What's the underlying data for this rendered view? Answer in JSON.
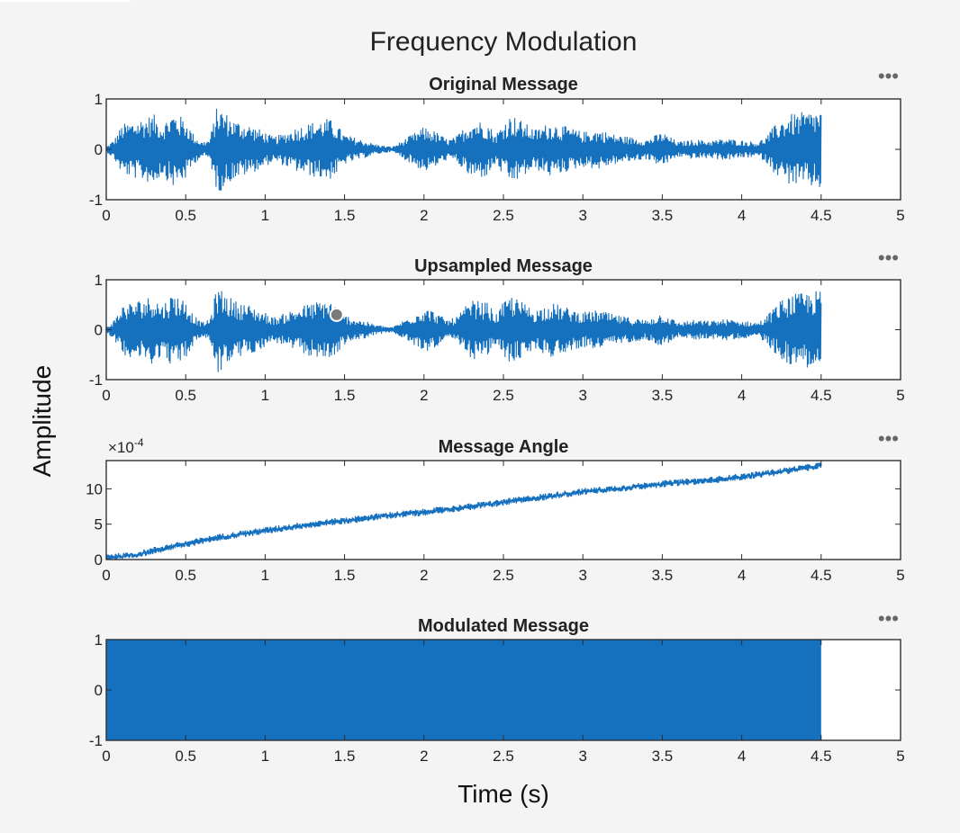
{
  "figure": {
    "title": "Frequency Modulation",
    "ylabel": "Amplitude",
    "xlabel": "Time (s)",
    "menu_glyph": "•••",
    "accent": "#1570be"
  },
  "chart_data": [
    {
      "type": "line",
      "title": "Original Message",
      "xlim": [
        0,
        5
      ],
      "ylim": [
        -1,
        1
      ],
      "xticks": [
        0,
        0.5,
        1,
        1.5,
        2,
        2.5,
        3,
        3.5,
        4,
        4.5,
        5
      ],
      "xtick_labels": [
        "0",
        "0.5",
        "1",
        "1.5",
        "2",
        "2.5",
        "3",
        "3.5",
        "4",
        "4.5",
        "5"
      ],
      "yticks": [
        -1,
        0,
        1
      ],
      "ytick_labels": [
        "-1",
        "0",
        "1"
      ],
      "data_end_x": 4.5,
      "envelope": {
        "x": [
          0,
          0.05,
          0.1,
          0.2,
          0.3,
          0.35,
          0.42,
          0.5,
          0.55,
          0.6,
          0.65,
          0.7,
          0.73,
          0.8,
          0.9,
          1.0,
          1.05,
          1.1,
          1.2,
          1.3,
          1.4,
          1.45,
          1.5,
          1.6,
          1.7,
          1.8,
          1.9,
          2.0,
          2.05,
          2.1,
          2.15,
          2.2,
          2.3,
          2.4,
          2.45,
          2.5,
          2.55,
          2.6,
          2.7,
          2.8,
          2.9,
          3.0,
          3.1,
          3.2,
          3.3,
          3.4,
          3.5,
          3.6,
          3.7,
          3.8,
          3.9,
          4.0,
          4.1,
          4.15,
          4.2,
          4.25,
          4.3,
          4.4,
          4.5
        ],
        "amp": [
          0.05,
          0.2,
          0.5,
          0.6,
          0.7,
          0.5,
          0.75,
          0.6,
          0.3,
          0.15,
          0.2,
          0.9,
          0.8,
          0.6,
          0.5,
          0.35,
          0.25,
          0.3,
          0.45,
          0.55,
          0.62,
          0.5,
          0.3,
          0.2,
          0.1,
          0.05,
          0.25,
          0.45,
          0.4,
          0.3,
          0.2,
          0.25,
          0.6,
          0.55,
          0.3,
          0.55,
          0.7,
          0.6,
          0.4,
          0.55,
          0.45,
          0.35,
          0.4,
          0.3,
          0.25,
          0.2,
          0.35,
          0.15,
          0.2,
          0.18,
          0.22,
          0.18,
          0.15,
          0.25,
          0.45,
          0.6,
          0.7,
          0.75,
          0.8
        ]
      }
    },
    {
      "type": "line",
      "title": "Upsampled Message",
      "xlim": [
        0,
        5
      ],
      "ylim": [
        -1,
        1
      ],
      "xticks": [
        0,
        0.5,
        1,
        1.5,
        2,
        2.5,
        3,
        3.5,
        4,
        4.5,
        5
      ],
      "xtick_labels": [
        "0",
        "0.5",
        "1",
        "1.5",
        "2",
        "2.5",
        "3",
        "3.5",
        "4",
        "4.5",
        "5"
      ],
      "yticks": [
        -1,
        0,
        1
      ],
      "ytick_labels": [
        "-1",
        "0",
        "1"
      ],
      "data_end_x": 4.5,
      "envelope": {
        "x": [
          0,
          0.05,
          0.1,
          0.2,
          0.3,
          0.35,
          0.42,
          0.5,
          0.55,
          0.6,
          0.65,
          0.7,
          0.73,
          0.8,
          0.9,
          1.0,
          1.05,
          1.1,
          1.2,
          1.3,
          1.4,
          1.45,
          1.5,
          1.6,
          1.7,
          1.8,
          1.9,
          2.0,
          2.05,
          2.1,
          2.15,
          2.2,
          2.3,
          2.4,
          2.45,
          2.5,
          2.55,
          2.6,
          2.7,
          2.8,
          2.9,
          3.0,
          3.1,
          3.2,
          3.3,
          3.4,
          3.5,
          3.6,
          3.7,
          3.8,
          3.9,
          4.0,
          4.1,
          4.15,
          4.2,
          4.25,
          4.3,
          4.4,
          4.5
        ],
        "amp": [
          0.05,
          0.2,
          0.5,
          0.6,
          0.7,
          0.5,
          0.75,
          0.6,
          0.3,
          0.15,
          0.2,
          0.9,
          0.8,
          0.6,
          0.5,
          0.35,
          0.25,
          0.3,
          0.45,
          0.55,
          0.62,
          0.5,
          0.3,
          0.2,
          0.1,
          0.05,
          0.25,
          0.45,
          0.4,
          0.3,
          0.2,
          0.25,
          0.6,
          0.55,
          0.3,
          0.55,
          0.7,
          0.6,
          0.4,
          0.55,
          0.45,
          0.35,
          0.4,
          0.3,
          0.25,
          0.2,
          0.35,
          0.15,
          0.2,
          0.18,
          0.22,
          0.18,
          0.15,
          0.25,
          0.45,
          0.6,
          0.7,
          0.75,
          0.8
        ]
      },
      "marker": {
        "x": 1.45,
        "y": 0.3
      }
    },
    {
      "type": "line",
      "title": "Message Angle",
      "xlim": [
        0,
        5
      ],
      "ylim": [
        0,
        14
      ],
      "exponent_label": "×10",
      "exponent_power": "-4",
      "xticks": [
        0,
        0.5,
        1,
        1.5,
        2,
        2.5,
        3,
        3.5,
        4,
        4.5,
        5
      ],
      "xtick_labels": [
        "0",
        "0.5",
        "1",
        "1.5",
        "2",
        "2.5",
        "3",
        "3.5",
        "4",
        "4.5",
        "5"
      ],
      "yticks": [
        0,
        5,
        10
      ],
      "ytick_labels": [
        "0",
        "5",
        "10"
      ],
      "data_end_x": 4.5,
      "trend": {
        "x": [
          0,
          0.1,
          0.2,
          0.3,
          0.5,
          0.7,
          1.0,
          1.3,
          1.5,
          1.8,
          2.0,
          2.3,
          2.5,
          2.8,
          3.0,
          3.3,
          3.5,
          3.8,
          4.0,
          4.2,
          4.5
        ],
        "y": [
          0.4,
          0.4,
          0.7,
          1.3,
          2.2,
          3.1,
          4.1,
          5.0,
          5.5,
          6.3,
          6.7,
          7.5,
          8.1,
          9.0,
          9.6,
          10.2,
          10.7,
          11.2,
          11.7,
          12.3,
          13.3
        ]
      },
      "noise": 0.5
    },
    {
      "type": "area",
      "title": "Modulated Message",
      "xlim": [
        0,
        5
      ],
      "ylim": [
        -1,
        1
      ],
      "xticks": [
        0,
        0.5,
        1,
        1.5,
        2,
        2.5,
        3,
        3.5,
        4,
        4.5,
        5
      ],
      "xtick_labels": [
        "0",
        "0.5",
        "1",
        "1.5",
        "2",
        "2.5",
        "3",
        "3.5",
        "4",
        "4.5",
        "5"
      ],
      "yticks": [
        -1,
        0,
        1
      ],
      "ytick_labels": [
        "-1",
        "0",
        "1"
      ],
      "data_end_x": 4.5,
      "fill_range": [
        -1,
        1
      ]
    }
  ]
}
